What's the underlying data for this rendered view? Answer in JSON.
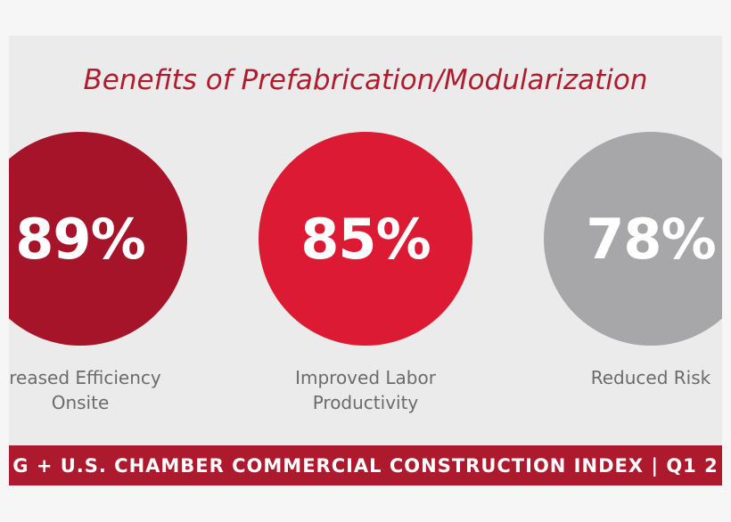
{
  "title": "Benefits of Prefabrication/Modularization",
  "items": [
    {
      "percent": "89%",
      "color": "#a6142a",
      "label": [
        "creased Efficiency",
        "Onsite"
      ]
    },
    {
      "percent": "85%",
      "color": "#dc1a33",
      "label": [
        "Improved Labor",
        "Productivity"
      ]
    },
    {
      "percent": "78%",
      "color": "#a7a7a9",
      "label": [
        "Reduced Risk"
      ]
    }
  ],
  "footer": "G + U.S. CHAMBER COMMERCIAL CONSTRUCTION INDEX  |  Q1 2"
}
